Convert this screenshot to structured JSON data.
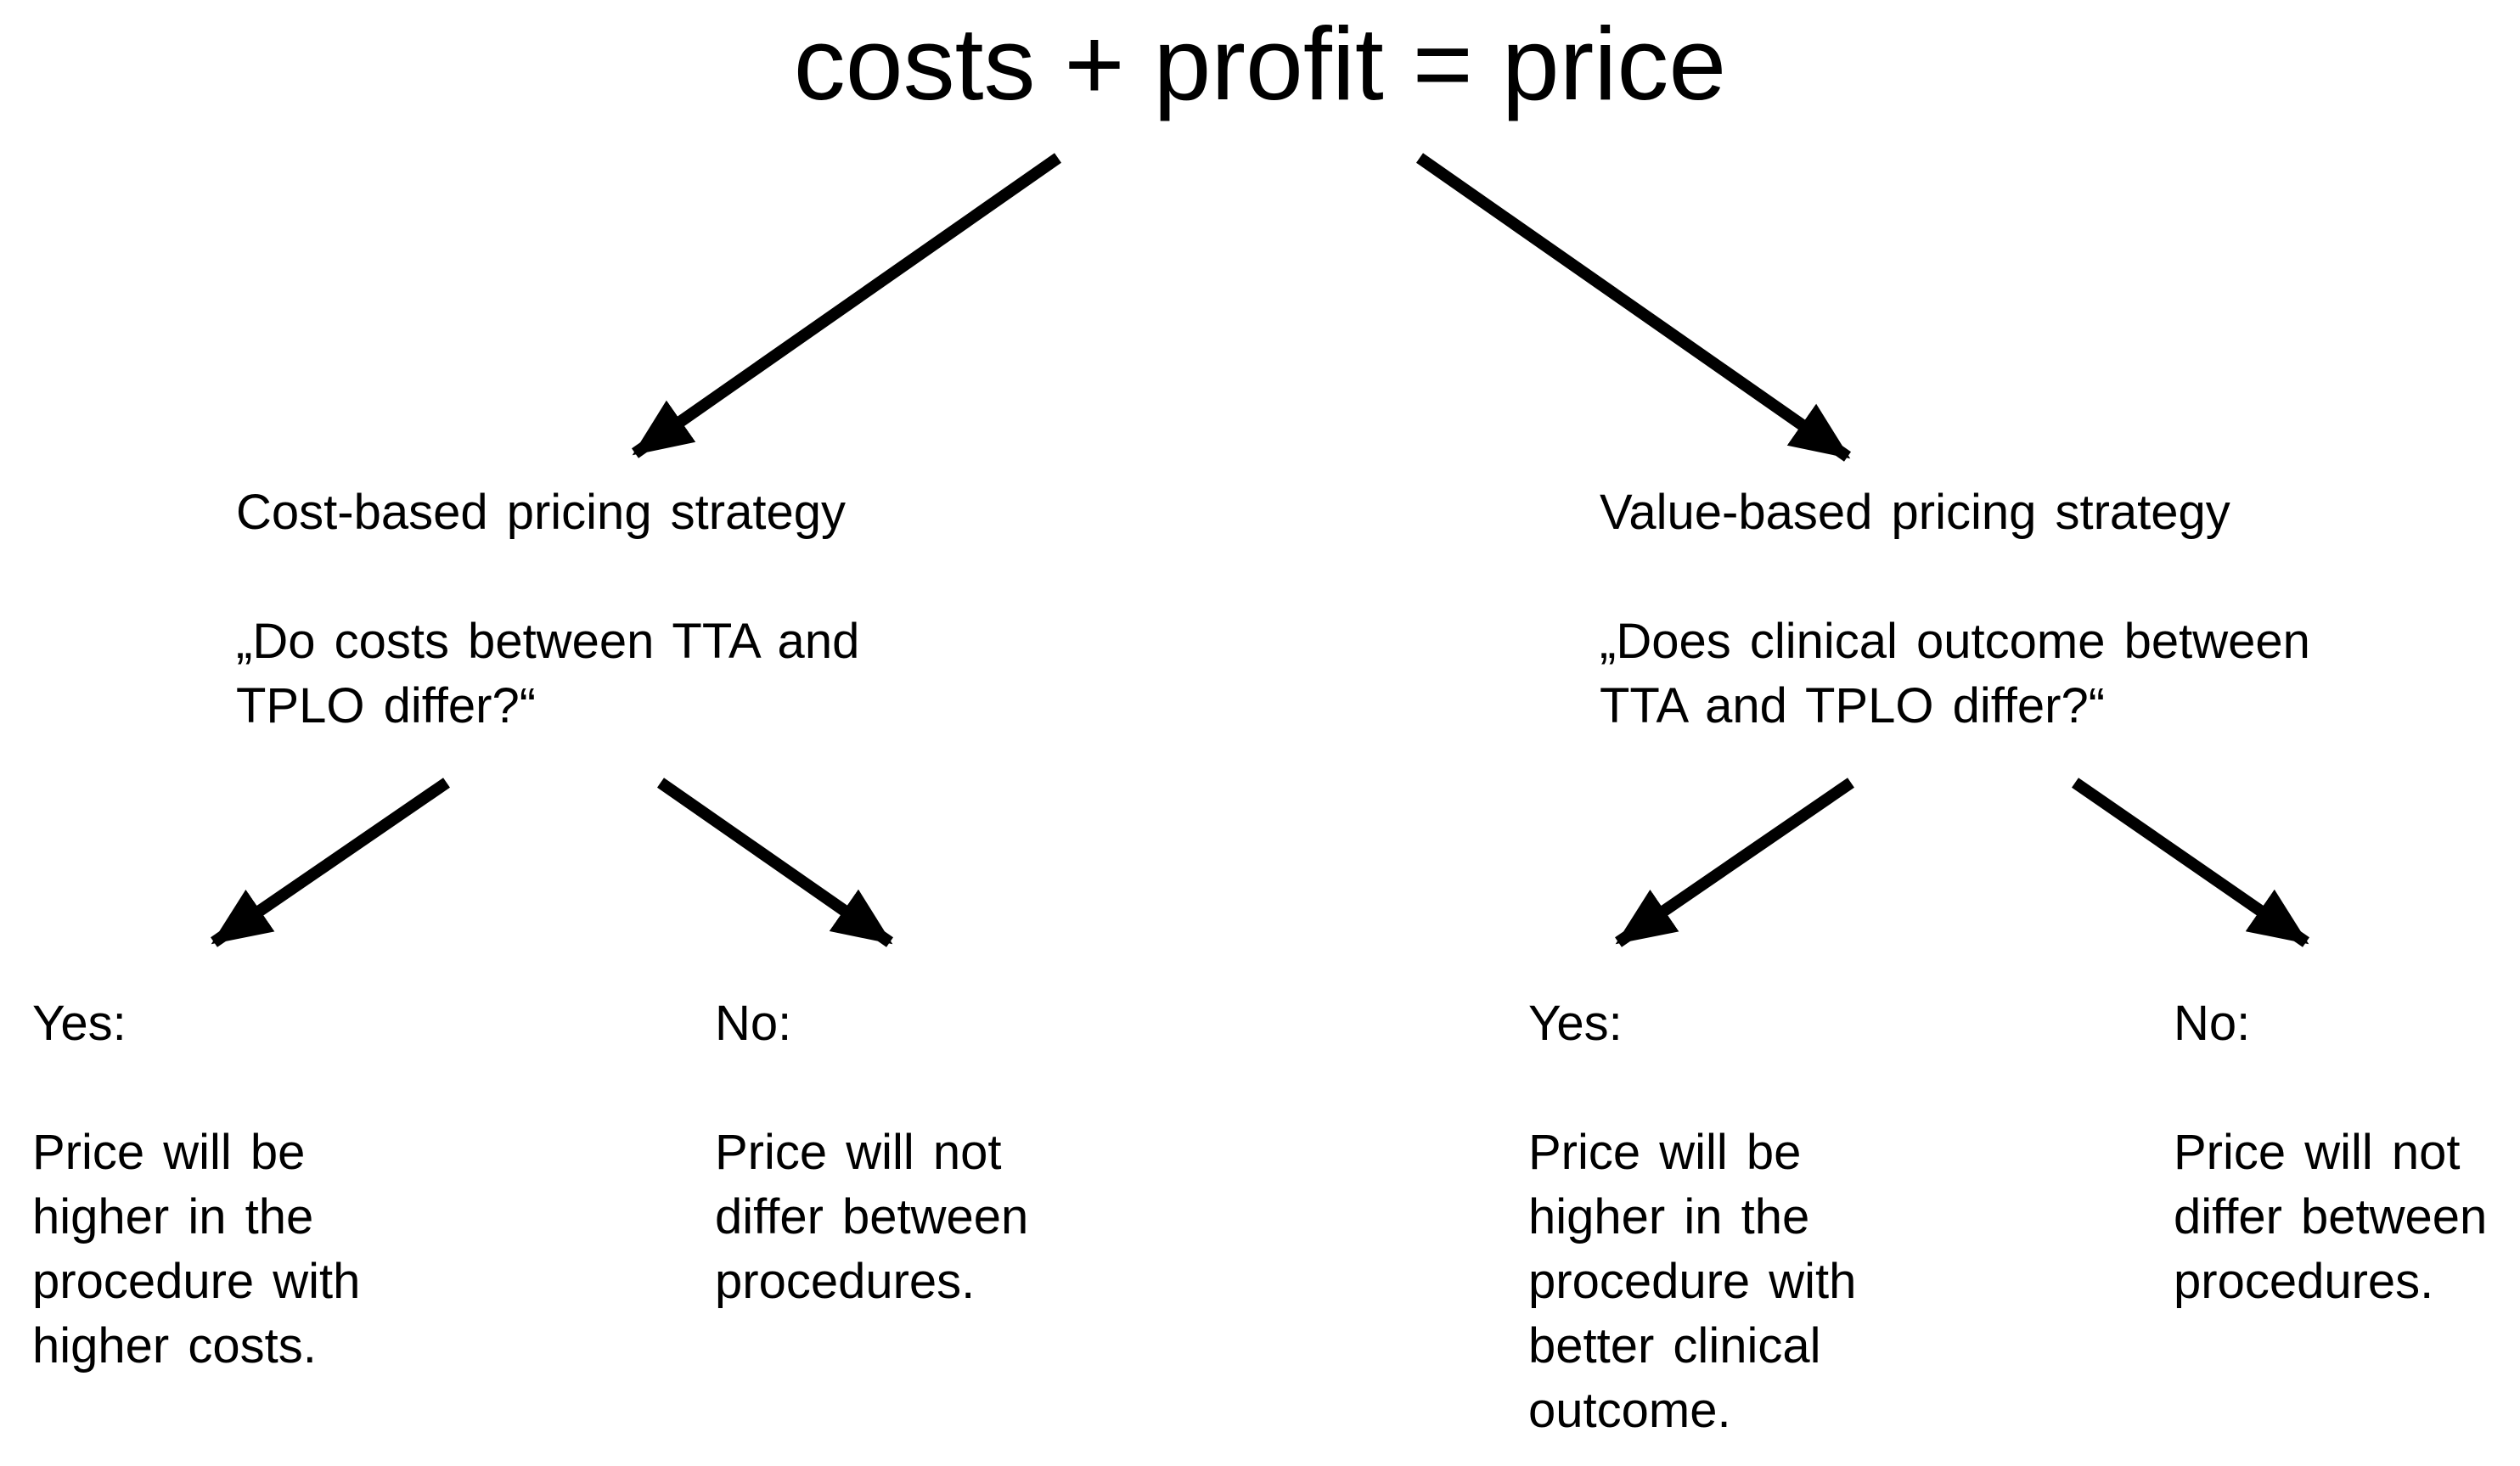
{
  "title": "costs + profit = price",
  "branches": {
    "cost": {
      "strategy": "Cost-based pricing strategy",
      "question_line1": "„Do costs between TTA and",
      "question_line2": "TPLO differ?“",
      "yes": {
        "label": "Yes:",
        "lines": [
          "Price will be",
          "higher in the",
          "procedure with",
          "higher costs."
        ]
      },
      "no": {
        "label": "No:",
        "lines": [
          "Price will not",
          "differ between",
          "procedures."
        ]
      }
    },
    "value": {
      "strategy": "Value-based pricing strategy",
      "question_line1": "„Does clinical outcome between",
      "question_line2": "TTA and TPLO differ?“",
      "yes": {
        "label": "Yes:",
        "lines": [
          "Price will be",
          "higher in the",
          "procedure with",
          "better clinical",
          "outcome."
        ]
      },
      "no": {
        "label": "No:",
        "lines": [
          "Price will not",
          "differ between",
          "procedures."
        ]
      }
    }
  }
}
